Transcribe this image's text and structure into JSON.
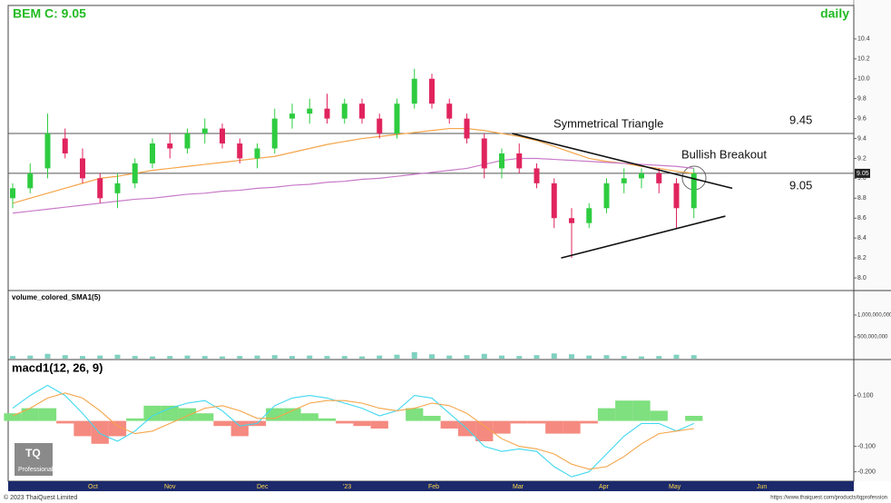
{
  "header": {
    "title": "BEM C: 9.05",
    "period": "daily",
    "copyright": "© 2023 ThaiQuest Limited",
    "url": "https://www.thaiquest.com/products/tqprofession",
    "logo": "TQ",
    "logo_sub": "Professional",
    "x_axis_labels": [
      "Oct",
      "Nov",
      "Dec",
      "'23",
      "Feb",
      "Mar",
      "Apr",
      "May",
      "Jun"
    ]
  },
  "chart_data": [
    {
      "type": "candlestick",
      "open": [
        8.8,
        8.9,
        9.1,
        9.4,
        9.2,
        9.0,
        8.85,
        8.95,
        9.15,
        9.35,
        9.3,
        9.45,
        9.5,
        9.35,
        9.2,
        9.3,
        9.6,
        9.65,
        9.7,
        9.6,
        9.75,
        9.6,
        9.45,
        9.75,
        10.0,
        9.75,
        9.6,
        9.4,
        9.1,
        9.25,
        9.1,
        8.95,
        8.6,
        8.55,
        8.7,
        8.95,
        9.0,
        9.05,
        8.95,
        8.7
      ],
      "high": [
        8.95,
        9.15,
        9.65,
        9.5,
        9.3,
        9.05,
        9.05,
        9.2,
        9.4,
        9.45,
        9.5,
        9.6,
        9.55,
        9.4,
        9.35,
        9.7,
        9.75,
        9.8,
        9.85,
        9.8,
        9.8,
        9.65,
        9.8,
        10.1,
        10.05,
        9.8,
        9.65,
        9.45,
        9.3,
        9.35,
        9.15,
        9.0,
        8.7,
        8.75,
        9.0,
        9.1,
        9.1,
        9.1,
        9.0,
        9.1
      ],
      "low": [
        8.7,
        8.85,
        9.0,
        9.2,
        8.95,
        8.75,
        8.7,
        8.9,
        9.1,
        9.2,
        9.25,
        9.35,
        9.3,
        9.15,
        9.1,
        9.25,
        9.5,
        9.55,
        9.55,
        9.55,
        9.55,
        9.4,
        9.4,
        9.7,
        9.7,
        9.55,
        9.35,
        9.0,
        9.0,
        9.05,
        8.9,
        8.5,
        8.2,
        8.5,
        8.65,
        8.85,
        8.9,
        8.85,
        8.5,
        8.6
      ],
      "close": [
        8.9,
        9.05,
        9.45,
        9.25,
        9.0,
        8.8,
        8.95,
        9.15,
        9.35,
        9.3,
        9.45,
        9.5,
        9.35,
        9.2,
        9.3,
        9.6,
        9.65,
        9.7,
        9.6,
        9.75,
        9.6,
        9.45,
        9.75,
        10.0,
        9.75,
        9.6,
        9.4,
        9.1,
        9.25,
        9.1,
        8.95,
        8.6,
        8.55,
        8.7,
        8.95,
        9.0,
        9.05,
        8.95,
        8.7,
        9.05
      ],
      "up_color": "#2ecc40",
      "down_color": "#e0245e",
      "series": [
        {
          "color": "#f5a54a",
          "values": [
            8.75,
            8.8,
            8.85,
            8.9,
            8.95,
            9.0,
            9.02,
            9.05,
            9.08,
            9.1,
            9.12,
            9.14,
            9.16,
            9.18,
            9.2,
            9.22,
            9.26,
            9.3,
            9.34,
            9.37,
            9.4,
            9.42,
            9.44,
            9.46,
            9.48,
            9.5,
            9.5,
            9.48,
            9.45,
            9.42,
            9.38,
            9.32,
            9.26,
            9.2,
            9.17,
            9.15,
            9.12,
            9.1,
            9.07,
            9.05
          ]
        },
        {
          "color": "#c87ac8",
          "values": [
            8.65,
            8.67,
            8.69,
            8.71,
            8.73,
            8.75,
            8.77,
            8.79,
            8.8,
            8.82,
            8.84,
            8.85,
            8.87,
            8.88,
            8.9,
            8.91,
            8.93,
            8.94,
            8.96,
            8.97,
            8.99,
            9.0,
            9.02,
            9.04,
            9.06,
            9.08,
            9.1,
            9.14,
            9.18,
            9.2,
            9.2,
            9.19,
            9.18,
            9.17,
            9.16,
            9.15,
            9.14,
            9.13,
            9.12,
            9.1
          ]
        }
      ],
      "levels": [
        9.45,
        9.05
      ],
      "last_price": 9.05,
      "trendlines": [
        {
          "x": [
            28.6,
            41.2
          ],
          "y": [
            9.45,
            8.9
          ]
        },
        {
          "x": [
            31.4,
            40.8
          ],
          "y": [
            8.2,
            8.62
          ]
        }
      ],
      "annotations": [
        "Symmetrical Triangle",
        "Bullish Breakout"
      ],
      "ylim": [
        7.9,
        10.7
      ],
      "yticks": [
        10.4,
        10.2,
        {
          "value": 10.0,
          "label": "10.0"
        },
        9.8,
        9.6,
        9.4,
        9.2,
        {
          "value": 9.0,
          "label": "9.0"
        },
        8.8,
        8.6,
        8.4,
        8.2,
        {
          "value": 8.0,
          "label": "8.0"
        }
      ]
    },
    {
      "type": "bar",
      "title": "volume_colored_SMA1(5)",
      "values": [
        60000000,
        70000000,
        110000000,
        80000000,
        60000000,
        70000000,
        90000000,
        60000000,
        50000000,
        60000000,
        70000000,
        60000000,
        50000000,
        60000000,
        70000000,
        80000000,
        60000000,
        70000000,
        60000000,
        60000000,
        50000000,
        70000000,
        90000000,
        150000000,
        100000000,
        70000000,
        80000000,
        110000000,
        70000000,
        60000000,
        80000000,
        120000000,
        100000000,
        70000000,
        80000000,
        60000000,
        50000000,
        60000000,
        90000000,
        80000000
      ],
      "color": "#7fd1c0",
      "ylim": [
        0,
        1500000000
      ],
      "yticks": [
        {
          "value": 1000000000,
          "label": "1,000,000,000"
        },
        {
          "value": 500000000,
          "label": "500,000,000"
        }
      ]
    },
    {
      "type": "macd",
      "title": "macd1(12, 26, 9)",
      "series": [
        {
          "color": "#40d8f0",
          "values": [
            0.05,
            0.1,
            0.14,
            0.1,
            0.03,
            -0.05,
            -0.08,
            -0.04,
            0.02,
            0.05,
            0.07,
            0.08,
            0.04,
            -0.02,
            -0.01,
            0.06,
            0.09,
            0.1,
            0.09,
            0.07,
            0.05,
            0.02,
            0.04,
            0.1,
            0.09,
            0.03,
            -0.03,
            -0.1,
            -0.12,
            -0.11,
            -0.12,
            -0.18,
            -0.22,
            -0.2,
            -0.13,
            -0.06,
            -0.01,
            -0.01,
            -0.04,
            -0.01
          ]
        },
        {
          "color": "#f5a54a",
          "values": [
            0.02,
            0.05,
            0.09,
            0.11,
            0.09,
            0.04,
            -0.02,
            -0.05,
            -0.04,
            -0.01,
            0.02,
            0.05,
            0.06,
            0.04,
            0.01,
            0.01,
            0.04,
            0.07,
            0.08,
            0.08,
            0.07,
            0.05,
            0.04,
            0.05,
            0.07,
            0.06,
            0.03,
            -0.02,
            -0.07,
            -0.1,
            -0.11,
            -0.13,
            -0.17,
            -0.19,
            -0.18,
            -0.14,
            -0.09,
            -0.05,
            -0.04,
            -0.03
          ]
        }
      ],
      "histogram": [
        0.03,
        0.05,
        0.05,
        -0.01,
        -0.06,
        -0.09,
        -0.06,
        0.01,
        0.06,
        0.06,
        0.05,
        0.03,
        -0.02,
        -0.06,
        -0.02,
        0.05,
        0.05,
        0.03,
        0.01,
        -0.01,
        -0.02,
        -0.03,
        0,
        0.05,
        0.02,
        -0.03,
        -0.06,
        -0.08,
        -0.05,
        -0.01,
        -0.01,
        -0.05,
        -0.05,
        -0.01,
        0.05,
        0.08,
        0.08,
        0.04,
        0,
        0.02
      ],
      "pos_color": "#7ee07e",
      "neg_color": "#f58a80",
      "ylim": [
        -0.23,
        0.22
      ],
      "yticks": [
        {
          "value": 0.1,
          "label": "0.100"
        },
        {
          "value": -0.1,
          "label": "-0.100"
        },
        {
          "value": -0.2,
          "label": "-0.200"
        }
      ]
    }
  ]
}
